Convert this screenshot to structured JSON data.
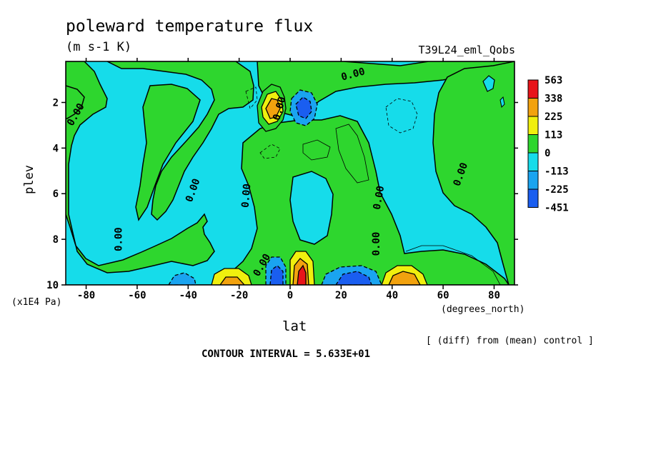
{
  "chart_data": {
    "type": "heatmap",
    "title": "poleward temperature flux",
    "units": "(m s-1 K)",
    "dataset": "T39L24_eml_Qobs",
    "xlabel": "lat",
    "ylabel": "plev",
    "x_units": "(degrees_north)",
    "y_units": "(x1E4 Pa)",
    "diff_note": "[ (diff) from (mean) control ]",
    "contour_interval_text": "CONTOUR INTERVAL = 5.633E+01",
    "xlim": [
      -88,
      88
    ],
    "ylim": [
      10,
      0.2
    ],
    "x_ticks": [
      -80,
      -60,
      -40,
      -20,
      0,
      20,
      40,
      60,
      80
    ],
    "x_tick_labels": [
      "-80",
      "-60",
      "-40",
      "-20",
      "0",
      "20",
      "40",
      "60",
      "80"
    ],
    "y_ticks": [
      2,
      4,
      6,
      8,
      10
    ],
    "y_tick_labels": [
      "2",
      "4",
      "6",
      "8",
      "10"
    ],
    "colorbar": {
      "labels": [
        "563",
        "338",
        "225",
        "113",
        "0",
        "-113",
        "-225",
        "-451"
      ],
      "colors": [
        "#e8141a",
        "#f2a20e",
        "#f0ef0e",
        "#2ed62e",
        "#16dcea",
        "#1aa4f0",
        "#1a5ef0"
      ]
    },
    "contour_labels": [
      {
        "x": -83,
        "y": 2.6,
        "text": "0.00",
        "rotation": -60
      },
      {
        "x": -66,
        "y": 8.0,
        "text": "0.00",
        "rotation": -90
      },
      {
        "x": -37,
        "y": 5.9,
        "text": "0.00",
        "rotation": -70
      },
      {
        "x": -16,
        "y": 6.1,
        "text": "0.00",
        "rotation": -85
      },
      {
        "x": -10,
        "y": 9.2,
        "text": "0.00",
        "rotation": -60
      },
      {
        "x": -3,
        "y": 2.3,
        "text": "0.00",
        "rotation": -75
      },
      {
        "x": 25,
        "y": 0.9,
        "text": "0.00",
        "rotation": -15
      },
      {
        "x": 36,
        "y": 6.2,
        "text": "0.00",
        "rotation": -80
      },
      {
        "x": 35,
        "y": 8.2,
        "text": "0.00",
        "rotation": -90
      },
      {
        "x": 68,
        "y": 5.2,
        "text": "0.00",
        "rotation": -70
      }
    ]
  }
}
